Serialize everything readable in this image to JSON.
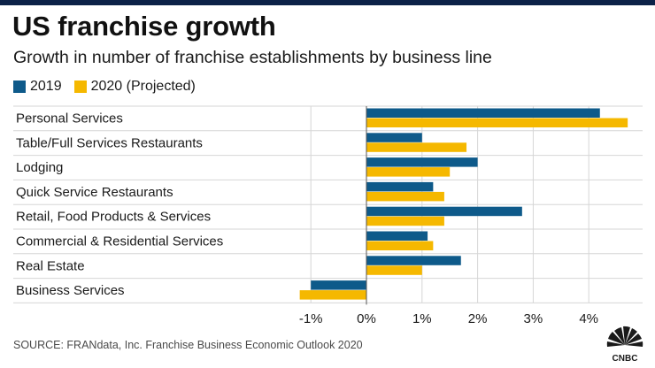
{
  "title": "US franchise growth",
  "subtitle": "Growth in number of franchise establishments by business line",
  "source": "SOURCE: FRANdata, Inc. Franchise Business Economic Outlook 2020",
  "logo_text": "CNBC",
  "colors": {
    "series_2019": "#0e5a8a",
    "series_2020": "#f5b800",
    "grid": "#d6d6d6",
    "zero_line": "#555555"
  },
  "chart_data": {
    "type": "bar",
    "orientation": "horizontal",
    "categories": [
      "Personal Services",
      "Table/Full Services Restaurants",
      "Lodging",
      "Quick Service Restaurants",
      "Retail, Food Products & Services",
      "Commercial & Residential Services",
      "Real Estate",
      "Business Services"
    ],
    "series": [
      {
        "name": "2019",
        "color": "#0e5a8a",
        "values": [
          4.2,
          1.0,
          2.0,
          1.2,
          2.8,
          1.1,
          1.7,
          -1.0
        ]
      },
      {
        "name": "2020 (Projected)",
        "color": "#f5b800",
        "values": [
          4.7,
          1.8,
          1.5,
          1.4,
          1.4,
          1.2,
          1.0,
          -1.2
        ]
      }
    ],
    "xlim": [
      -1.2,
      5.0
    ],
    "xticks": [
      -1,
      0,
      1,
      2,
      3,
      4
    ],
    "xtick_labels": [
      "-1%",
      "0%",
      "1%",
      "2%",
      "3%",
      "4%"
    ],
    "legend_position": "top-left",
    "grid": true
  }
}
